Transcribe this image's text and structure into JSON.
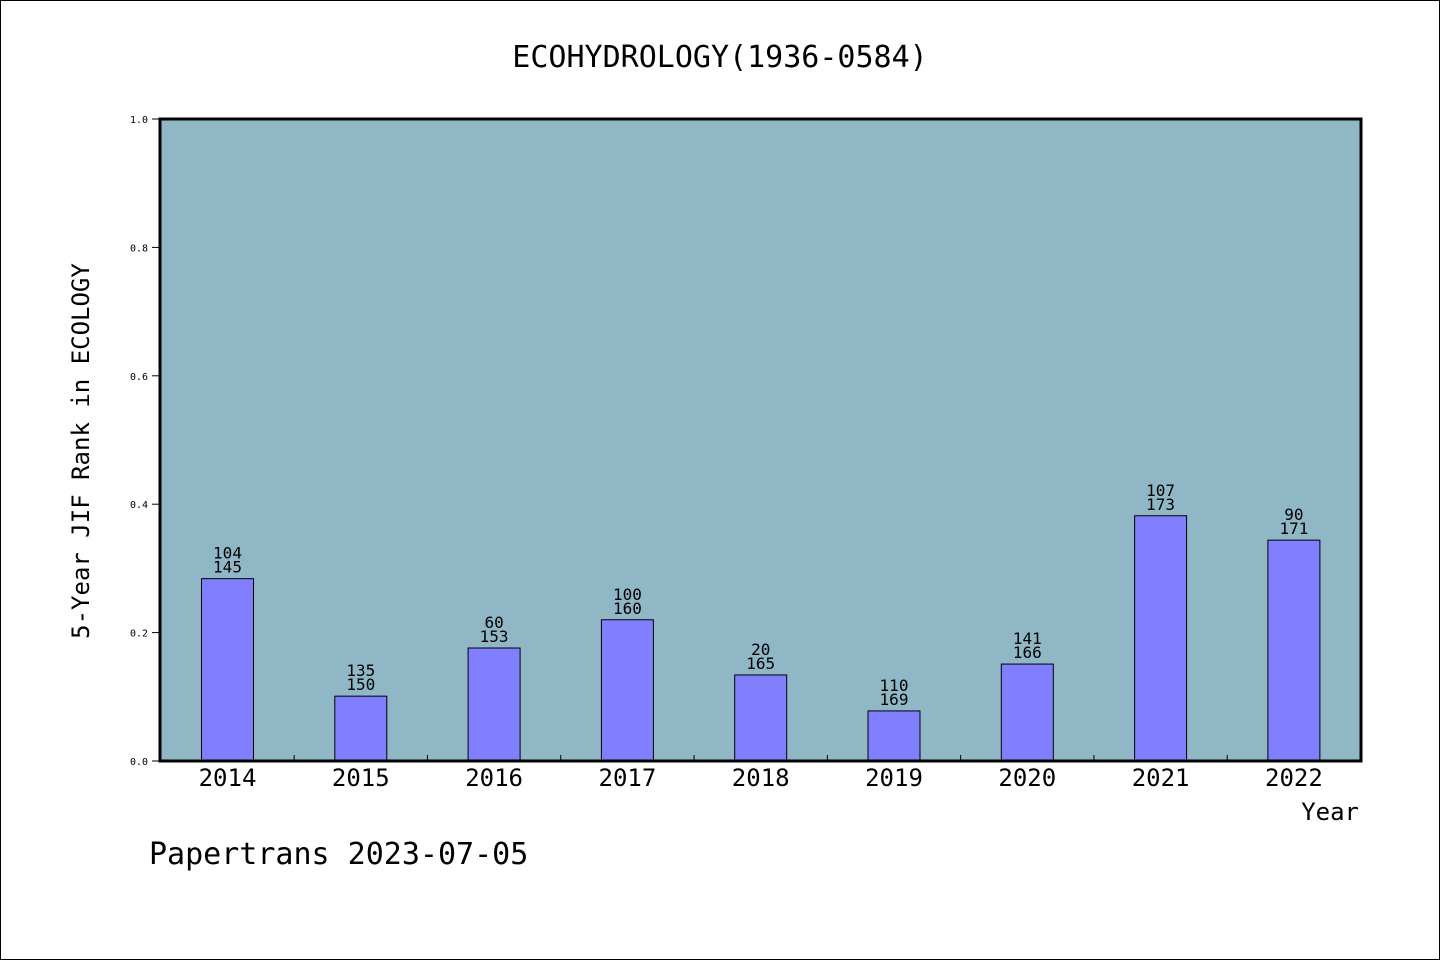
{
  "chart_data": {
    "type": "bar",
    "title": "ECOHYDROLOGY(1936-0584)",
    "xlabel": "Year",
    "ylabel": "5-Year JIF Rank in ECOLOGY",
    "categories": [
      "2014",
      "2015",
      "2016",
      "2017",
      "2018",
      "2019",
      "2020",
      "2021",
      "2022"
    ],
    "values": [
      0.284,
      0.101,
      0.176,
      0.22,
      0.134,
      0.078,
      0.151,
      0.382,
      0.344
    ],
    "labels_top": [
      "104",
      "135",
      "60",
      "100",
      "20",
      "110",
      "141",
      "107",
      "90"
    ],
    "labels_bottom": [
      "145",
      "150",
      "153",
      "160",
      "165",
      "169",
      "166",
      "173",
      "171"
    ],
    "ylim": [
      0,
      1.0
    ],
    "yticks": [
      "0.0",
      "0.2",
      "0.4",
      "0.6",
      "0.8",
      "1.0"
    ],
    "grid": false,
    "colors": {
      "plot_bg": "#8fb7c5",
      "bar": "#8080ff"
    }
  },
  "footer": "Papertrans 2023-07-05"
}
